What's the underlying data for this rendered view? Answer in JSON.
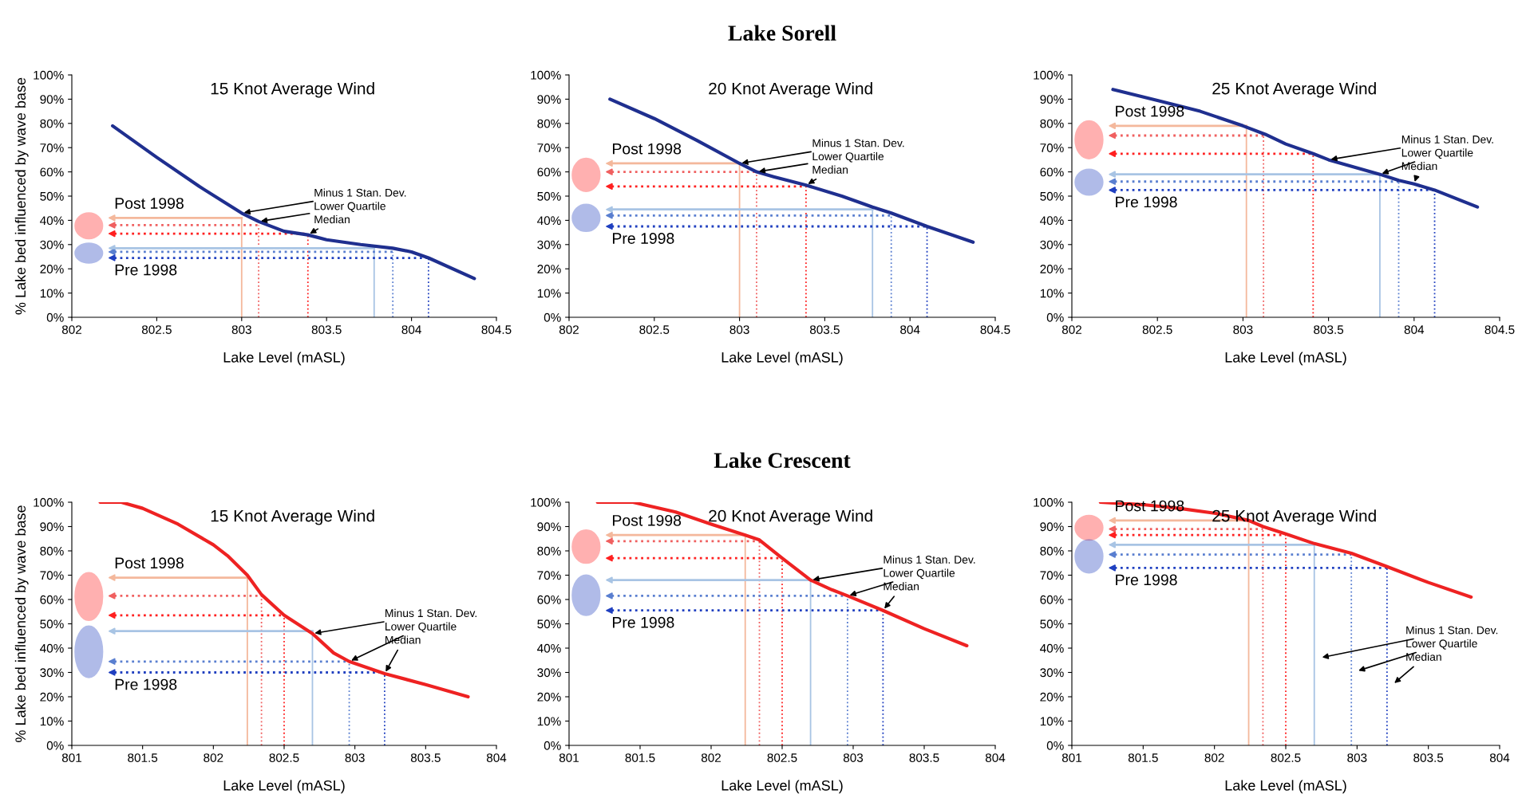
{
  "chart_data": [
    {
      "type": "line",
      "title": "15 Knot Average Wind",
      "xlabel": "Lake Level (mASL)",
      "ylabel": "% Lake bed influenced by wave base",
      "x": [
        802.24,
        802.5,
        802.75,
        803.0,
        803.1,
        803.25,
        803.39,
        803.5,
        803.7,
        803.89,
        804.0,
        804.1,
        804.37
      ],
      "series": [
        {
          "color": "#1f2f8f",
          "values": [
            79,
            66,
            54,
            43,
            39.5,
            35.5,
            34,
            32,
            30,
            28.5,
            27,
            24.5,
            16
          ]
        }
      ],
      "xlim": [
        802,
        804.5
      ],
      "xticks": [
        802,
        802.5,
        803,
        803.5,
        804,
        804.5
      ],
      "ylim": [
        0,
        100
      ],
      "yticks": [
        {
          "value": 0,
          "label": "0%"
        },
        {
          "value": 10,
          "label": "10%"
        },
        {
          "value": 20,
          "label": "20%"
        },
        {
          "value": 30,
          "label": "30%"
        },
        {
          "value": 40,
          "label": "40%"
        },
        {
          "value": 50,
          "label": "50%"
        },
        {
          "value": 60,
          "label": "60%"
        },
        {
          "value": 70,
          "label": "70%"
        },
        {
          "value": 80,
          "label": "80%"
        },
        {
          "value": 90,
          "label": "90%"
        },
        {
          "value": 100,
          "label": "100%"
        }
      ],
      "ref_lines": [
        {
          "axis": "x",
          "value": 803.0,
          "color": "#f4b89c",
          "line_style": "solid"
        },
        {
          "axis": "y",
          "value": 41,
          "color": "#f4b89c",
          "line_style": "solid"
        },
        {
          "axis": "x",
          "value": 803.1,
          "color": "#f06060",
          "line_style": "dotted"
        },
        {
          "axis": "y",
          "value": 38,
          "color": "#f06060",
          "line_style": "dotted"
        },
        {
          "axis": "x",
          "value": 803.39,
          "color": "#ff2020",
          "line_style": "dotted"
        },
        {
          "axis": "y",
          "value": 34.5,
          "color": "#ff2020",
          "line_style": "dotted"
        },
        {
          "axis": "x",
          "value": 803.78,
          "color": "#a8c4e4",
          "line_style": "solid"
        },
        {
          "axis": "y",
          "value": 28.5,
          "color": "#a8c4e4",
          "line_style": "solid"
        },
        {
          "axis": "x",
          "value": 803.89,
          "color": "#5a7fd0",
          "line_style": "dotted"
        },
        {
          "axis": "y",
          "value": 27,
          "color": "#5a7fd0",
          "line_style": "dotted"
        },
        {
          "axis": "x",
          "value": 804.1,
          "color": "#2040c0",
          "line_style": "dotted"
        },
        {
          "axis": "y",
          "value": 24.5,
          "color": "#2040c0",
          "line_style": "dotted"
        }
      ],
      "annotations": [
        "Post 1998",
        "Pre 1998",
        {
          "text": "Minus 1 Stan. Dev.",
          "x": 803.0,
          "y": 43
        },
        {
          "text": "Lower Quartile",
          "x": 803.1,
          "y": 39.5
        },
        {
          "text": "Median",
          "x": 803.39,
          "y": 34
        }
      ],
      "legend": false,
      "grid": false
    },
    {
      "type": "line",
      "title": "20 Knot Average Wind",
      "xlabel": "Lake Level (mASL)",
      "subtitle": "Lake Sorell",
      "x": [
        802.24,
        802.5,
        802.75,
        803.0,
        803.1,
        803.2,
        803.39,
        803.6,
        803.78,
        803.89,
        804.1,
        804.37
      ],
      "series": [
        {
          "color": "#1f2f8f",
          "values": [
            90,
            82,
            73,
            63.5,
            60,
            58,
            54.5,
            50,
            45.5,
            43,
            37.5,
            31
          ]
        }
      ],
      "xlim": [
        802,
        804.5
      ],
      "xticks": [
        802,
        802.5,
        803,
        803.5,
        804,
        804.5
      ],
      "ylim": [
        0,
        100
      ],
      "yticks": [
        {
          "value": 0,
          "label": "0%"
        },
        {
          "value": 10,
          "label": "10%"
        },
        {
          "value": 20,
          "label": "20%"
        },
        {
          "value": 30,
          "label": "30%"
        },
        {
          "value": 40,
          "label": "40%"
        },
        {
          "value": 50,
          "label": "50%"
        },
        {
          "value": 60,
          "label": "60%"
        },
        {
          "value": 70,
          "label": "70%"
        },
        {
          "value": 80,
          "label": "80%"
        },
        {
          "value": 90,
          "label": "90%"
        },
        {
          "value": 100,
          "label": "100%"
        }
      ],
      "ref_lines": [
        {
          "axis": "x",
          "value": 803.0,
          "color": "#f4b89c",
          "line_style": "solid"
        },
        {
          "axis": "y",
          "value": 63.5,
          "color": "#f4b89c",
          "line_style": "solid"
        },
        {
          "axis": "x",
          "value": 803.1,
          "color": "#f06060",
          "line_style": "dotted"
        },
        {
          "axis": "y",
          "value": 60,
          "color": "#f06060",
          "line_style": "dotted"
        },
        {
          "axis": "x",
          "value": 803.39,
          "color": "#ff2020",
          "line_style": "dotted"
        },
        {
          "axis": "y",
          "value": 54,
          "color": "#ff2020",
          "line_style": "dotted"
        },
        {
          "axis": "x",
          "value": 803.78,
          "color": "#a8c4e4",
          "line_style": "solid"
        },
        {
          "axis": "y",
          "value": 44.5,
          "color": "#a8c4e4",
          "line_style": "solid"
        },
        {
          "axis": "x",
          "value": 803.89,
          "color": "#5a7fd0",
          "line_style": "dotted"
        },
        {
          "axis": "y",
          "value": 42,
          "color": "#5a7fd0",
          "line_style": "dotted"
        },
        {
          "axis": "x",
          "value": 804.1,
          "color": "#2040c0",
          "line_style": "dotted"
        },
        {
          "axis": "y",
          "value": 37.5,
          "color": "#2040c0",
          "line_style": "dotted"
        }
      ],
      "annotations": [
        "Post 1998",
        "Pre 1998",
        {
          "text": "Minus 1 Stan. Dev.",
          "x": 803.0,
          "y": 63.5
        },
        {
          "text": "Lower Quartile",
          "x": 803.1,
          "y": 60
        },
        {
          "text": "Median",
          "x": 803.39,
          "y": 54.5
        }
      ],
      "legend": false,
      "grid": false
    },
    {
      "type": "line",
      "title": "25 Knot Average Wind",
      "xlabel": "Lake Level (mASL)",
      "x": [
        802.24,
        802.5,
        802.75,
        803.0,
        803.13,
        803.25,
        803.41,
        803.5,
        803.8,
        803.91,
        804.0,
        804.12,
        804.37
      ],
      "series": [
        {
          "color": "#1f2f8f",
          "values": [
            94,
            89.5,
            85,
            79,
            75.5,
            71.5,
            67.5,
            65,
            59,
            56.5,
            55,
            52.5,
            45.5
          ]
        }
      ],
      "xlim": [
        802,
        804.5
      ],
      "xticks": [
        802,
        802.5,
        803,
        803.5,
        804,
        804.5
      ],
      "ylim": [
        0,
        100
      ],
      "yticks": [
        {
          "value": 0,
          "label": "0%"
        },
        {
          "value": 10,
          "label": "10%"
        },
        {
          "value": 20,
          "label": "20%"
        },
        {
          "value": 30,
          "label": "30%"
        },
        {
          "value": 40,
          "label": "40%"
        },
        {
          "value": 50,
          "label": "50%"
        },
        {
          "value": 60,
          "label": "60%"
        },
        {
          "value": 70,
          "label": "70%"
        },
        {
          "value": 80,
          "label": "80%"
        },
        {
          "value": 90,
          "label": "90%"
        },
        {
          "value": 100,
          "label": "100%"
        }
      ],
      "ref_lines": [
        {
          "axis": "x",
          "value": 803.02,
          "color": "#f4b89c",
          "line_style": "solid"
        },
        {
          "axis": "y",
          "value": 79,
          "color": "#f4b89c",
          "line_style": "solid"
        },
        {
          "axis": "x",
          "value": 803.12,
          "color": "#f06060",
          "line_style": "dotted"
        },
        {
          "axis": "y",
          "value": 75,
          "color": "#f06060",
          "line_style": "dotted"
        },
        {
          "axis": "x",
          "value": 803.41,
          "color": "#ff2020",
          "line_style": "dotted"
        },
        {
          "axis": "y",
          "value": 67.5,
          "color": "#ff2020",
          "line_style": "dotted"
        },
        {
          "axis": "x",
          "value": 803.8,
          "color": "#a8c4e4",
          "line_style": "solid"
        },
        {
          "axis": "y",
          "value": 59,
          "color": "#a8c4e4",
          "line_style": "solid"
        },
        {
          "axis": "x",
          "value": 803.91,
          "color": "#5a7fd0",
          "line_style": "dotted"
        },
        {
          "axis": "y",
          "value": 56,
          "color": "#5a7fd0",
          "line_style": "dotted"
        },
        {
          "axis": "x",
          "value": 804.12,
          "color": "#2040c0",
          "line_style": "dotted"
        },
        {
          "axis": "y",
          "value": 52.5,
          "color": "#2040c0",
          "line_style": "dotted"
        }
      ],
      "annotations": [
        "Post 1998",
        "Pre 1998",
        {
          "text": "Minus 1 Stan. Dev.",
          "x": 803.5,
          "y": 65
        },
        {
          "text": "Lower Quartile",
          "x": 803.8,
          "y": 59
        },
        {
          "text": "Median",
          "x": 804.0,
          "y": 55
        }
      ],
      "legend": false,
      "grid": false
    },
    {
      "type": "line",
      "title": "15 Knot Average Wind",
      "xlabel": "Lake Level (mASL)",
      "ylabel": "% Lake bed influenced by wave base",
      "x": [
        801.2,
        801.35,
        801.5,
        801.75,
        802.0,
        802.1,
        802.24,
        802.34,
        802.5,
        802.7,
        802.85,
        802.96,
        803.21,
        803.5,
        803.8
      ],
      "series": [
        {
          "color": "#ee2222",
          "values": [
            100,
            100,
            97.5,
            91,
            82.5,
            78,
            70,
            62,
            53.5,
            46,
            38,
            34.5,
            29.5,
            25,
            20
          ]
        }
      ],
      "xlim": [
        801,
        804
      ],
      "xticks": [
        801,
        801.5,
        802,
        802.5,
        803,
        803.5,
        804
      ],
      "ylim": [
        0,
        100
      ],
      "yticks": [
        {
          "value": 0,
          "label": "0%"
        },
        {
          "value": 10,
          "label": "10%"
        },
        {
          "value": 20,
          "label": "20%"
        },
        {
          "value": 30,
          "label": "30%"
        },
        {
          "value": 40,
          "label": "40%"
        },
        {
          "value": 50,
          "label": "50%"
        },
        {
          "value": 60,
          "label": "60%"
        },
        {
          "value": 70,
          "label": "70%"
        },
        {
          "value": 80,
          "label": "80%"
        },
        {
          "value": 90,
          "label": "90%"
        },
        {
          "value": 100,
          "label": "100%"
        }
      ],
      "ref_lines": [
        {
          "axis": "x",
          "value": 802.24,
          "color": "#f4b89c",
          "line_style": "solid"
        },
        {
          "axis": "y",
          "value": 69,
          "color": "#f4b89c",
          "line_style": "solid"
        },
        {
          "axis": "x",
          "value": 802.34,
          "color": "#f06060",
          "line_style": "dotted"
        },
        {
          "axis": "y",
          "value": 61.5,
          "color": "#f06060",
          "line_style": "dotted"
        },
        {
          "axis": "x",
          "value": 802.5,
          "color": "#ff2020",
          "line_style": "dotted"
        },
        {
          "axis": "y",
          "value": 53.5,
          "color": "#ff2020",
          "line_style": "dotted"
        },
        {
          "axis": "x",
          "value": 802.7,
          "color": "#a8c4e4",
          "line_style": "solid"
        },
        {
          "axis": "y",
          "value": 47,
          "color": "#a8c4e4",
          "line_style": "solid"
        },
        {
          "axis": "x",
          "value": 802.96,
          "color": "#5a7fd0",
          "line_style": "dotted"
        },
        {
          "axis": "y",
          "value": 34.5,
          "color": "#5a7fd0",
          "line_style": "dotted"
        },
        {
          "axis": "x",
          "value": 803.21,
          "color": "#2040c0",
          "line_style": "dotted"
        },
        {
          "axis": "y",
          "value": 30,
          "color": "#2040c0",
          "line_style": "dotted"
        }
      ],
      "annotations": [
        "Post 1998",
        "Pre 1998",
        {
          "text": "Minus 1 Stan. Dev.",
          "x": 802.7,
          "y": 46
        },
        {
          "text": "Lower Quartile",
          "x": 802.96,
          "y": 34.5
        },
        {
          "text": "Median",
          "x": 803.21,
          "y": 29.5
        }
      ],
      "legend": false,
      "grid": false
    },
    {
      "type": "line",
      "title": "20 Knot Average Wind",
      "xlabel": "Lake Level (mASL)",
      "subtitle": "Lake Crescent",
      "x": [
        801.2,
        801.45,
        801.75,
        802.0,
        802.24,
        802.34,
        802.5,
        802.7,
        802.85,
        802.96,
        803.21,
        803.5,
        803.8
      ],
      "series": [
        {
          "color": "#ee2222",
          "values": [
            100,
            100,
            96,
            91,
            86.5,
            84.5,
            77,
            68,
            64,
            61.5,
            55.5,
            48,
            41
          ]
        }
      ],
      "xlim": [
        801,
        804
      ],
      "xticks": [
        801,
        801.5,
        802,
        802.5,
        803,
        803.5,
        804
      ],
      "ylim": [
        0,
        100
      ],
      "yticks": [
        {
          "value": 0,
          "label": "0%"
        },
        {
          "value": 10,
          "label": "10%"
        },
        {
          "value": 20,
          "label": "20%"
        },
        {
          "value": 30,
          "label": "30%"
        },
        {
          "value": 40,
          "label": "40%"
        },
        {
          "value": 50,
          "label": "50%"
        },
        {
          "value": 60,
          "label": "60%"
        },
        {
          "value": 70,
          "label": "70%"
        },
        {
          "value": 80,
          "label": "80%"
        },
        {
          "value": 90,
          "label": "90%"
        },
        {
          "value": 100,
          "label": "100%"
        }
      ],
      "ref_lines": [
        {
          "axis": "x",
          "value": 802.24,
          "color": "#f4b89c",
          "line_style": "solid"
        },
        {
          "axis": "y",
          "value": 86.5,
          "color": "#f4b89c",
          "line_style": "solid"
        },
        {
          "axis": "x",
          "value": 802.34,
          "color": "#f06060",
          "line_style": "dotted"
        },
        {
          "axis": "y",
          "value": 84,
          "color": "#f06060",
          "line_style": "dotted"
        },
        {
          "axis": "x",
          "value": 802.5,
          "color": "#ff2020",
          "line_style": "dotted"
        },
        {
          "axis": "y",
          "value": 77,
          "color": "#ff2020",
          "line_style": "dotted"
        },
        {
          "axis": "x",
          "value": 802.7,
          "color": "#a8c4e4",
          "line_style": "solid"
        },
        {
          "axis": "y",
          "value": 68,
          "color": "#a8c4e4",
          "line_style": "solid"
        },
        {
          "axis": "x",
          "value": 802.96,
          "color": "#5a7fd0",
          "line_style": "dotted"
        },
        {
          "axis": "y",
          "value": 61.5,
          "color": "#5a7fd0",
          "line_style": "dotted"
        },
        {
          "axis": "x",
          "value": 803.21,
          "color": "#2040c0",
          "line_style": "dotted"
        },
        {
          "axis": "y",
          "value": 55.5,
          "color": "#2040c0",
          "line_style": "dotted"
        }
      ],
      "annotations": [
        "Post 1998",
        "Pre 1998",
        {
          "text": "Minus 1 Stan. Dev.",
          "x": 802.7,
          "y": 68
        },
        {
          "text": "Lower Quartile",
          "x": 802.96,
          "y": 61.5
        },
        {
          "text": "Median",
          "x": 803.21,
          "y": 55.5
        }
      ],
      "legend": false,
      "grid": false
    },
    {
      "type": "line",
      "title": "25 Knot Average Wind",
      "xlabel": "Lake Level (mASL)",
      "x": [
        801.2,
        801.5,
        801.75,
        802.0,
        802.24,
        802.34,
        802.5,
        802.7,
        802.96,
        803.21,
        803.5,
        803.8
      ],
      "series": [
        {
          "color": "#ee2222",
          "values": [
            100,
            99,
            97.5,
            95.5,
            92.5,
            90,
            87,
            83,
            79,
            73.5,
            67,
            61
          ]
        }
      ],
      "xlim": [
        801,
        804
      ],
      "xticks": [
        801,
        801.5,
        802,
        802.5,
        803,
        803.5,
        804
      ],
      "ylim": [
        0,
        100
      ],
      "yticks": [
        {
          "value": 0,
          "label": "0%"
        },
        {
          "value": 10,
          "label": "10%"
        },
        {
          "value": 20,
          "label": "20%"
        },
        {
          "value": 30,
          "label": "30%"
        },
        {
          "value": 40,
          "label": "40%"
        },
        {
          "value": 50,
          "label": "50%"
        },
        {
          "value": 60,
          "label": "60%"
        },
        {
          "value": 70,
          "label": "70%"
        },
        {
          "value": 80,
          "label": "80%"
        },
        {
          "value": 90,
          "label": "90%"
        },
        {
          "value": 100,
          "label": "100%"
        }
      ],
      "ref_lines": [
        {
          "axis": "x",
          "value": 802.24,
          "color": "#f4b89c",
          "line_style": "solid"
        },
        {
          "axis": "y",
          "value": 92.5,
          "color": "#f4b89c",
          "line_style": "solid"
        },
        {
          "axis": "x",
          "value": 802.34,
          "color": "#f06060",
          "line_style": "dotted"
        },
        {
          "axis": "y",
          "value": 89,
          "color": "#f06060",
          "line_style": "dotted"
        },
        {
          "axis": "x",
          "value": 802.5,
          "color": "#ff2020",
          "line_style": "dotted"
        },
        {
          "axis": "y",
          "value": 86.5,
          "color": "#ff2020",
          "line_style": "dotted"
        },
        {
          "axis": "x",
          "value": 802.7,
          "color": "#a8c4e4",
          "line_style": "solid"
        },
        {
          "axis": "y",
          "value": 82.5,
          "color": "#a8c4e4",
          "line_style": "solid"
        },
        {
          "axis": "x",
          "value": 802.96,
          "color": "#5a7fd0",
          "line_style": "dotted"
        },
        {
          "axis": "y",
          "value": 78.5,
          "color": "#5a7fd0",
          "line_style": "dotted"
        },
        {
          "axis": "x",
          "value": 803.21,
          "color": "#2040c0",
          "line_style": "dotted"
        },
        {
          "axis": "y",
          "value": 73,
          "color": "#2040c0",
          "line_style": "dotted"
        }
      ],
      "annotations": [
        "Post 1998",
        "Pre 1998",
        "Minus 1 Stan. Dev.",
        "Lower Quartile",
        "Median"
      ],
      "legend": false,
      "grid": false
    }
  ]
}
